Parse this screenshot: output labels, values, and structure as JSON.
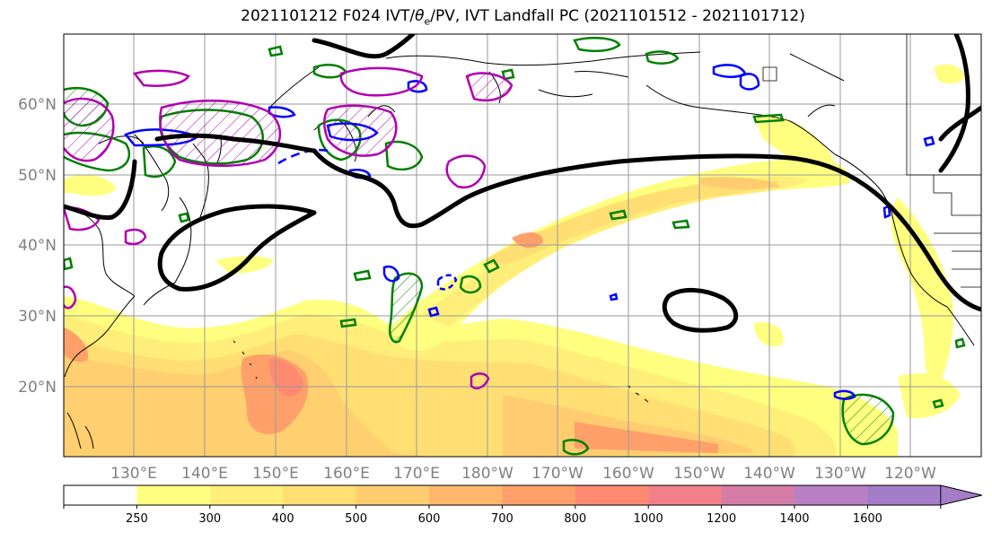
{
  "title": {
    "prefix": "2021101212 F024 IVT/",
    "theta": "θ",
    "theta_sub": "e",
    "suffix": "/PV, IVT Landfall PC (2021101512 - 2021101712)"
  },
  "map": {
    "lat_labels": [
      "60°N",
      "50°N",
      "40°N",
      "30°N",
      "20°N"
    ],
    "lon_labels": [
      "130°E",
      "140°E",
      "150°E",
      "160°E",
      "170°E",
      "180°W",
      "170°W",
      "160°W",
      "150°W",
      "140°W",
      "130°W",
      "120°W"
    ],
    "colors": {
      "theta_e_contour": "#000000",
      "pv_positive": "#008000",
      "pv_negative": "#0000ff",
      "landfall_pc": "#b000b0"
    }
  },
  "colorbar": {
    "levels": [
      "250",
      "300",
      "400",
      "500",
      "600",
      "700",
      "800",
      "1000",
      "1200",
      "1400",
      "1600"
    ],
    "colors": [
      "#ffffff",
      "#ffff80",
      "#ffef7a",
      "#ffdf74",
      "#ffcd70",
      "#ffb76c",
      "#ffa06a",
      "#ff8a72",
      "#f2808a",
      "#d47ca6",
      "#b880c4",
      "#a47dc8"
    ]
  }
}
